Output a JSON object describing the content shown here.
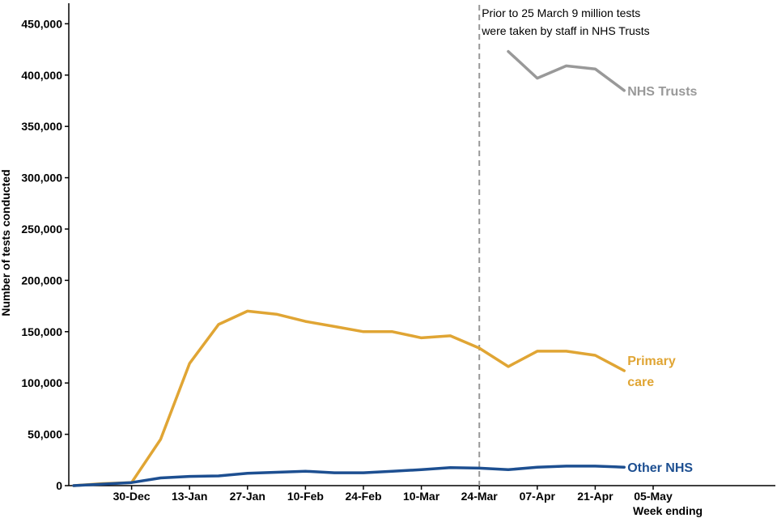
{
  "chart_data": {
    "type": "line",
    "xlabel": "Week ending",
    "ylabel": "Number of tests conducted",
    "ylim": [
      0,
      470000
    ],
    "yticks": [
      0,
      50000,
      100000,
      150000,
      200000,
      250000,
      300000,
      350000,
      400000,
      450000
    ],
    "ytick_labels": [
      "0",
      "50,000",
      "100,000",
      "150,000",
      "200,000",
      "250,000",
      "300,000",
      "350,000",
      "400,000",
      "450,000"
    ],
    "x": [
      "16-Dec",
      "23-Dec",
      "30-Dec",
      "06-Jan",
      "13-Jan",
      "20-Jan",
      "27-Jan",
      "03-Feb",
      "10-Feb",
      "17-Feb",
      "24-Feb",
      "03-Mar",
      "10-Mar",
      "17-Mar",
      "24-Mar",
      "31-Mar",
      "07-Apr",
      "14-Apr",
      "21-Apr",
      "28-Apr",
      "05-May"
    ],
    "xtick_labels": [
      "30-Dec",
      "13-Jan",
      "27-Jan",
      "10-Feb",
      "24-Feb",
      "10-Mar",
      "24-Mar",
      "07-Apr",
      "21-Apr",
      "05-May"
    ],
    "grid": false,
    "series": [
      {
        "name": "NHS Trusts",
        "color": "#999999",
        "values": [
          null,
          null,
          null,
          null,
          null,
          null,
          null,
          null,
          null,
          null,
          null,
          null,
          null,
          null,
          null,
          423000,
          397000,
          409000,
          406000,
          385000,
          null
        ],
        "label_lines": [
          "NHS Trusts"
        ]
      },
      {
        "name": "Primary care",
        "color": "#E0A534",
        "values": [
          0,
          2000,
          3000,
          45000,
          119000,
          157000,
          170000,
          167000,
          160000,
          155000,
          150000,
          150000,
          144000,
          146000,
          134000,
          116000,
          131000,
          131000,
          127000,
          112000,
          null
        ],
        "label_lines": [
          "Primary",
          "care"
        ]
      },
      {
        "name": "Other NHS",
        "color": "#1D4F91",
        "values": [
          0,
          1500,
          3000,
          7500,
          9000,
          9500,
          12000,
          13000,
          14000,
          12500,
          12500,
          14000,
          15500,
          17500,
          17000,
          15500,
          18000,
          19000,
          19000,
          18000,
          null
        ],
        "label_lines": [
          "Other NHS"
        ]
      }
    ],
    "annotation": {
      "x": "24-Mar",
      "lines": [
        "Prior to 25 March 9 million tests",
        "were taken by staff in NHS Trusts"
      ]
    }
  }
}
